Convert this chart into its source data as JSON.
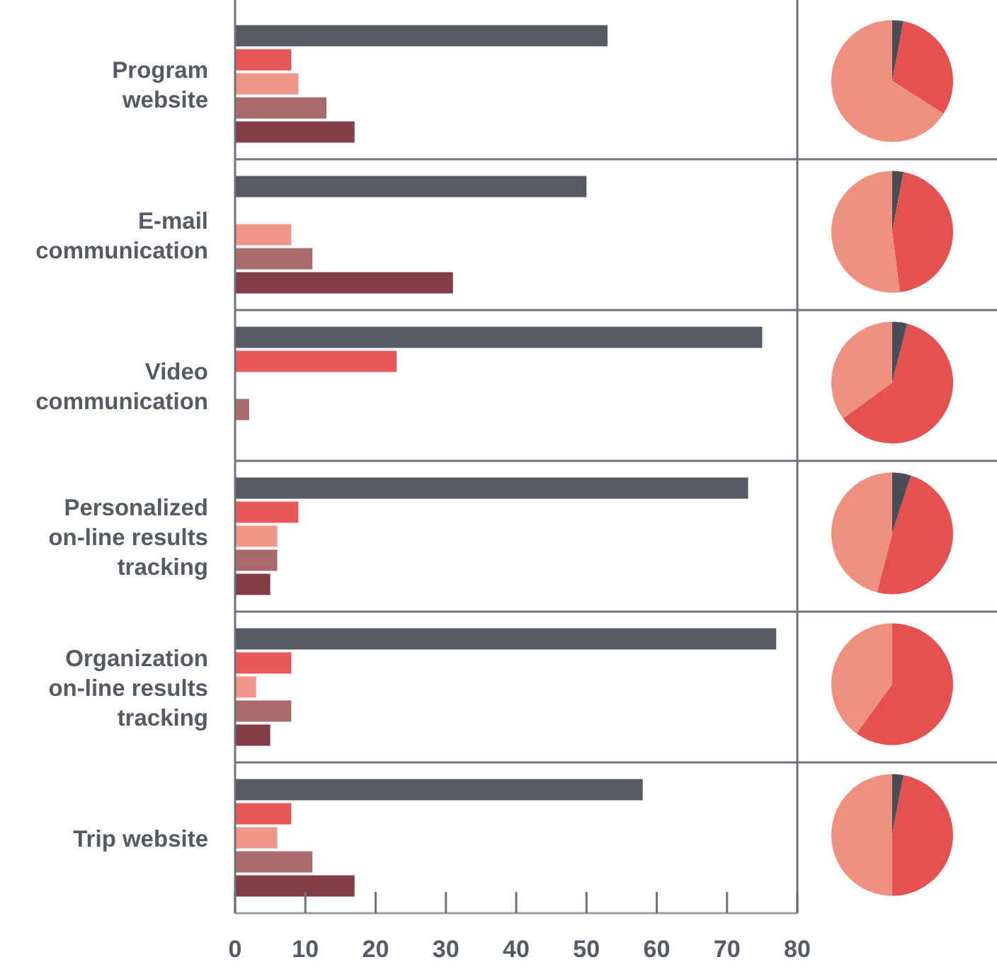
{
  "chart_data": [
    {
      "type": "bar",
      "orientation": "horizontal",
      "categories": [
        "Program\nwebsite",
        "E-mail\ncommunication",
        "Video\ncommunication",
        "Personalized\non-line results\ntracking",
        "Organization\non-line results\ntracking",
        "Trip website"
      ],
      "series": [
        {
          "color": "#555a63",
          "values": [
            53,
            50,
            75,
            73,
            77,
            58
          ]
        },
        {
          "color": "#e85858",
          "values": [
            8,
            null,
            23,
            9,
            8,
            8
          ]
        },
        {
          "color": "#f0968a",
          "values": [
            9,
            8,
            null,
            6,
            3,
            6
          ]
        },
        {
          "color": "#a86a6a",
          "values": [
            13,
            11,
            2,
            6,
            8,
            11
          ]
        },
        {
          "color": "#823c48",
          "values": [
            17,
            31,
            null,
            5,
            5,
            17
          ]
        }
      ],
      "xlim": [
        0,
        80
      ],
      "xticks": [
        0,
        10,
        20,
        30,
        40,
        50,
        60,
        70,
        80
      ]
    },
    {
      "type": "pie",
      "categories": [
        null,
        null,
        null
      ],
      "values": [
        3,
        31,
        66
      ],
      "colors": [
        "#4a4d55",
        "#e55050",
        "#ee9080"
      ]
    },
    {
      "type": "pie",
      "categories": [
        null,
        null,
        null
      ],
      "values": [
        3,
        45,
        52
      ],
      "colors": [
        "#4a4d55",
        "#e55050",
        "#ee9080"
      ]
    },
    {
      "type": "pie",
      "categories": [
        null,
        null,
        null
      ],
      "values": [
        4,
        61,
        35
      ],
      "colors": [
        "#4a4d55",
        "#e55050",
        "#ee9080"
      ]
    },
    {
      "type": "pie",
      "categories": [
        null,
        null,
        null
      ],
      "values": [
        5,
        49,
        46
      ],
      "colors": [
        "#4a4d55",
        "#e55050",
        "#ee9080"
      ]
    },
    {
      "type": "pie",
      "categories": [
        null,
        null,
        null
      ],
      "values": [
        0,
        60,
        40
      ],
      "colors": [
        "#4a4d55",
        "#e55050",
        "#ee9080"
      ]
    },
    {
      "type": "pie",
      "categories": [
        null,
        null,
        null
      ],
      "values": [
        3,
        47,
        50
      ],
      "colors": [
        "#4a4d55",
        "#e55050",
        "#ee9080"
      ]
    }
  ]
}
